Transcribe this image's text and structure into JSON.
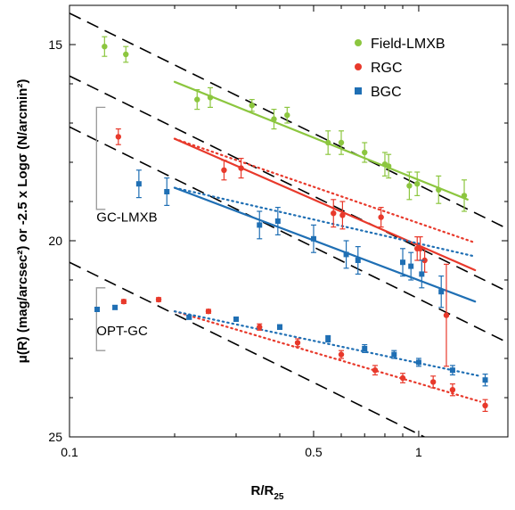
{
  "chart_data": {
    "type": "scatter",
    "xlabel": "R/R",
    "xlabel_subscript": "25",
    "ylabel": "μ(R) (mag/arcsec²) or -2.5 x Logσ (N/arcmin²)",
    "xscale": "log",
    "xlim": [
      0.1,
      1.8
    ],
    "ylim": [
      25,
      14
    ],
    "y_inverted": true,
    "x_ticks": [
      {
        "value": 0.1,
        "label": "0.1"
      },
      {
        "value": 0.5,
        "label": "0.5"
      },
      {
        "value": 1,
        "label": "1"
      }
    ],
    "y_ticks": [
      {
        "value": 15,
        "label": "15"
      },
      {
        "value": 20,
        "label": "20"
      },
      {
        "value": 25,
        "label": "25"
      }
    ],
    "legend": {
      "placement": "top-right",
      "entries": [
        {
          "label": "Field-LMXB",
          "color": "#8cc63f",
          "marker": "circle"
        },
        {
          "label": "RGC",
          "color": "#e8392b",
          "marker": "circle"
        },
        {
          "label": "BGC",
          "color": "#1f6fb4",
          "marker": "square"
        }
      ]
    },
    "group_labels": [
      {
        "text": "GC-LMXB",
        "x": 0.105,
        "y": 19.4,
        "bracket_y": [
          16.6,
          19.2
        ]
      },
      {
        "text": "OPT-GC",
        "x": 0.105,
        "y": 22.3,
        "bracket_y": [
          21.2,
          22.8
        ]
      }
    ],
    "series": [
      {
        "name": "Field-LMXB",
        "color": "#8cc63f",
        "marker": "circle",
        "points": [
          {
            "x": 0.126,
            "y": 15.05,
            "err": 0.25
          },
          {
            "x": 0.145,
            "y": 15.25,
            "err": 0.2
          },
          {
            "x": 0.232,
            "y": 16.4,
            "err": 0.25
          },
          {
            "x": 0.253,
            "y": 16.35,
            "err": 0.25
          },
          {
            "x": 0.333,
            "y": 16.55,
            "err": 0.15
          },
          {
            "x": 0.385,
            "y": 16.9,
            "err": 0.25
          },
          {
            "x": 0.42,
            "y": 16.8,
            "err": 0.2
          },
          {
            "x": 0.55,
            "y": 17.5,
            "err": 0.3
          },
          {
            "x": 0.6,
            "y": 17.5,
            "err": 0.3
          },
          {
            "x": 0.7,
            "y": 17.75,
            "err": 0.25
          },
          {
            "x": 0.8,
            "y": 18.05,
            "err": 0.3
          },
          {
            "x": 0.82,
            "y": 18.1,
            "err": 0.3
          },
          {
            "x": 0.94,
            "y": 18.6,
            "err": 0.35
          },
          {
            "x": 0.99,
            "y": 18.55,
            "err": 0.3
          },
          {
            "x": 1.14,
            "y": 18.7,
            "err": 0.35
          },
          {
            "x": 1.35,
            "y": 18.85,
            "err": 0.4
          }
        ]
      },
      {
        "name": "RGC",
        "color": "#e8392b",
        "marker": "circle",
        "points": [
          {
            "x": 0.138,
            "y": 17.35,
            "err": 0.2
          },
          {
            "x": 0.277,
            "y": 18.2,
            "err": 0.25
          },
          {
            "x": 0.31,
            "y": 18.15,
            "err": 0.25
          },
          {
            "x": 0.57,
            "y": 19.3,
            "err": 0.35
          },
          {
            "x": 0.605,
            "y": 19.35,
            "err": 0.35
          },
          {
            "x": 0.78,
            "y": 19.4,
            "err": 0.25
          },
          {
            "x": 0.99,
            "y": 20.2,
            "err": 0.3
          },
          {
            "x": 1.01,
            "y": 20.2,
            "err": 0.3
          },
          {
            "x": 1.04,
            "y": 20.5,
            "err": 0.3
          },
          {
            "x": 1.2,
            "y": 21.9,
            "err": 1.3
          },
          {
            "x": 0.143,
            "y": 21.55,
            "err": 0.05
          },
          {
            "x": 0.18,
            "y": 21.5,
            "err": 0.05
          },
          {
            "x": 0.25,
            "y": 21.8,
            "err": 0.05
          },
          {
            "x": 0.35,
            "y": 22.2,
            "err": 0.08
          },
          {
            "x": 0.45,
            "y": 22.6,
            "err": 0.1
          },
          {
            "x": 0.6,
            "y": 22.9,
            "err": 0.1
          },
          {
            "x": 0.75,
            "y": 23.3,
            "err": 0.12
          },
          {
            "x": 0.9,
            "y": 23.5,
            "err": 0.12
          },
          {
            "x": 1.1,
            "y": 23.6,
            "err": 0.15
          },
          {
            "x": 1.25,
            "y": 23.8,
            "err": 0.15
          },
          {
            "x": 1.55,
            "y": 24.2,
            "err": 0.15
          }
        ]
      },
      {
        "name": "BGC",
        "color": "#1f6fb4",
        "marker": "square",
        "points": [
          {
            "x": 0.158,
            "y": 18.55,
            "err": 0.35
          },
          {
            "x": 0.19,
            "y": 18.75,
            "err": 0.35
          },
          {
            "x": 0.35,
            "y": 19.6,
            "err": 0.35
          },
          {
            "x": 0.395,
            "y": 19.5,
            "err": 0.35
          },
          {
            "x": 0.5,
            "y": 19.95,
            "err": 0.35
          },
          {
            "x": 0.62,
            "y": 20.35,
            "err": 0.35
          },
          {
            "x": 0.67,
            "y": 20.5,
            "err": 0.35
          },
          {
            "x": 0.9,
            "y": 20.55,
            "err": 0.35
          },
          {
            "x": 0.95,
            "y": 20.65,
            "err": 0.35
          },
          {
            "x": 1.02,
            "y": 20.85,
            "err": 0.35
          },
          {
            "x": 1.16,
            "y": 21.3,
            "err": 0.4
          },
          {
            "x": 0.12,
            "y": 21.75,
            "err": 0.05
          },
          {
            "x": 0.135,
            "y": 21.7,
            "err": 0.05
          },
          {
            "x": 0.22,
            "y": 21.95,
            "err": 0.05
          },
          {
            "x": 0.3,
            "y": 22.0,
            "err": 0.05
          },
          {
            "x": 0.4,
            "y": 22.2,
            "err": 0.06
          },
          {
            "x": 0.55,
            "y": 22.5,
            "err": 0.08
          },
          {
            "x": 0.7,
            "y": 22.75,
            "err": 0.1
          },
          {
            "x": 0.85,
            "y": 22.9,
            "err": 0.1
          },
          {
            "x": 1.0,
            "y": 23.1,
            "err": 0.1
          },
          {
            "x": 1.25,
            "y": 23.3,
            "err": 0.12
          },
          {
            "x": 1.55,
            "y": 23.55,
            "err": 0.15
          }
        ]
      }
    ],
    "fit_lines": [
      {
        "series": "Field-LMXB",
        "style": "solid",
        "color": "#8cc63f",
        "x": [
          0.2,
          1.38
        ],
        "y": [
          15.95,
          18.95
        ]
      },
      {
        "series": "RGC",
        "style": "solid",
        "color": "#e8392b",
        "x": [
          0.2,
          1.45
        ],
        "y": [
          17.4,
          20.75
        ]
      },
      {
        "series": "BGC",
        "style": "solid",
        "color": "#1f6fb4",
        "x": [
          0.2,
          1.45
        ],
        "y": [
          18.65,
          21.55
        ]
      },
      {
        "series": "RGC",
        "style": "dotted",
        "color": "#e8392b",
        "x": [
          0.2,
          1.45
        ],
        "y": [
          17.4,
          20.05
        ]
      },
      {
        "series": "BGC",
        "style": "dotted",
        "color": "#1f6fb4",
        "x": [
          0.2,
          1.45
        ],
        "y": [
          18.65,
          20.4
        ]
      },
      {
        "series": "RGC",
        "style": "dotted",
        "color": "#e8392b",
        "x": [
          0.2,
          1.5
        ],
        "y": [
          21.8,
          24.1
        ]
      },
      {
        "series": "BGC",
        "style": "dotted",
        "color": "#1f6fb4",
        "x": [
          0.2,
          1.5
        ],
        "y": [
          21.8,
          23.45
        ]
      }
    ],
    "dashed_lines": [
      {
        "x": [
          0.1,
          1.8
        ],
        "y": [
          14.2,
          19.7
        ]
      },
      {
        "x": [
          0.1,
          1.8
        ],
        "y": [
          15.8,
          21.3
        ]
      },
      {
        "x": [
          0.1,
          1.8
        ],
        "y": [
          17.1,
          22.6
        ]
      },
      {
        "x": [
          0.1,
          1.8
        ],
        "y": [
          20.55,
          26.05
        ]
      }
    ]
  }
}
